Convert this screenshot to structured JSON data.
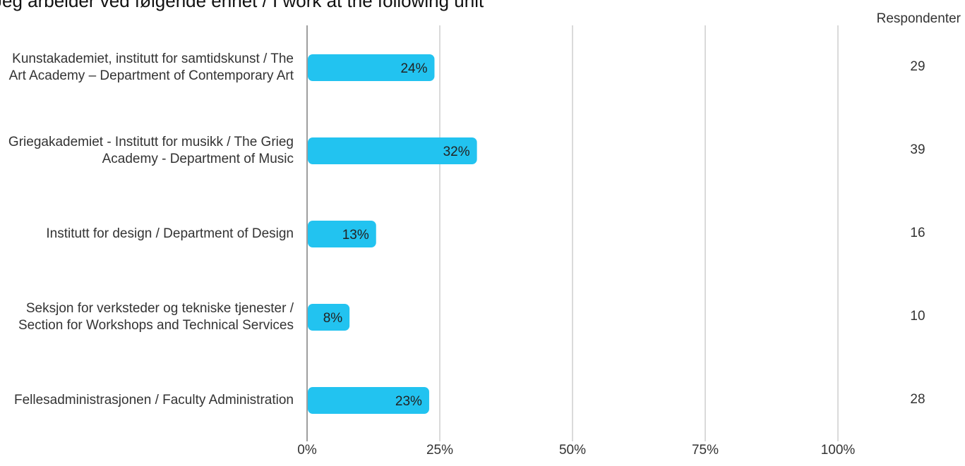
{
  "chart_data": {
    "type": "bar",
    "orientation": "horizontal",
    "title": "Jeg arbeider ved følgende enhet / I work at the following unit",
    "count_header": "Respondenter",
    "categories": [
      "Kunstakademiet, institutt for samtidskunst / The Art Academy – Department of Contemporary Art",
      "Griegakademiet - Institutt for musikk / The Grieg Academy - Department of Music",
      "Institutt for design / Department of Design",
      "Seksjon for verksteder og tekniske tjenester / Section for Workshops and Technical Services",
      "Fellesadministrasjonen / Faculty Administration"
    ],
    "values": [
      24,
      32,
      13,
      8,
      23
    ],
    "value_labels": [
      "24%",
      "32%",
      "13%",
      "8%",
      "23%"
    ],
    "counts": [
      "29",
      "39",
      "16",
      "10",
      "28"
    ],
    "xlim": [
      0,
      100
    ],
    "ticks": [
      0,
      25,
      50,
      75,
      100
    ],
    "tick_labels": [
      "0%",
      "25%",
      "50%",
      "75%",
      "100%"
    ],
    "grid": true,
    "bar_color": "#22c3f0",
    "grid_color": "#b5b5b5",
    "axis_color": "#9e9e9e"
  }
}
